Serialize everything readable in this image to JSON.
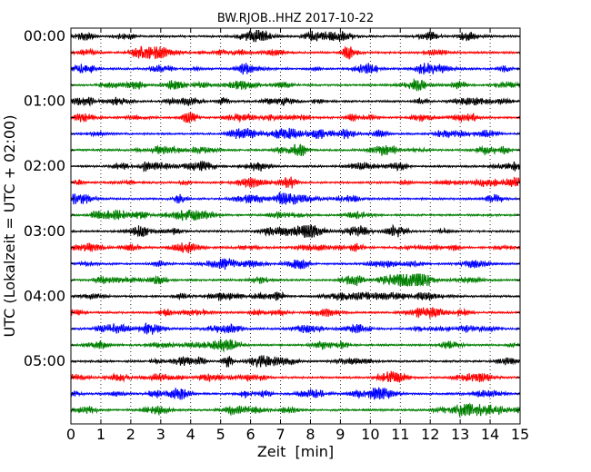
{
  "chart_data": {
    "type": "line",
    "title": "BW.RJOB..HHZ 2017-10-22",
    "xlabel": "Zeit  [min]",
    "ylabel": "UTC (Lokalzeit = UTC + 02:00)",
    "xlim": [
      0,
      15
    ],
    "x_ticks": [
      "0",
      "1",
      "2",
      "3",
      "4",
      "5",
      "6",
      "7",
      "8",
      "9",
      "10",
      "11",
      "12",
      "13",
      "14",
      "15"
    ],
    "y_ticks": [
      "00:00",
      "01:00",
      "02:00",
      "03:00",
      "04:00",
      "05:00"
    ],
    "trace_interval_min": 15,
    "trace_count": 24,
    "trace_colors": [
      "#000000",
      "#ff0000",
      "#0000ff",
      "#007f00"
    ],
    "grid": "vertical dotted at each minute"
  }
}
